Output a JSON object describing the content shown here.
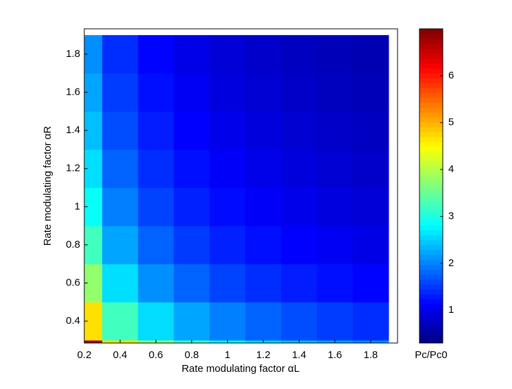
{
  "chart_data": {
    "type": "heatmap",
    "x_label": "Rate modulating factor αL",
    "y_label": "Rate modulating factor αR",
    "colorbar_label": "Pc/Pc0",
    "x": [
      0.2,
      0.4,
      0.6,
      0.8,
      1.0,
      1.2,
      1.4,
      1.6,
      1.8
    ],
    "y": [
      0.2,
      0.4,
      0.6,
      0.8,
      1.0,
      1.2,
      1.4,
      1.6,
      1.8
    ],
    "z": [
      [
        6.83,
        4.7,
        3.77,
        3.23,
        2.86,
        2.59,
        2.39,
        2.22,
        2.08
      ],
      [
        4.69,
        3.23,
        2.59,
        2.22,
        1.97,
        1.78,
        1.64,
        1.53,
        1.43
      ],
      [
        3.77,
        2.6,
        2.08,
        1.78,
        1.58,
        1.43,
        1.32,
        1.23,
        1.15
      ],
      [
        3.23,
        2.22,
        1.78,
        1.52,
        1.35,
        1.23,
        1.13,
        1.05,
        0.98
      ],
      [
        2.86,
        1.97,
        1.58,
        1.35,
        1.2,
        1.09,
        1.0,
        0.93,
        0.87
      ],
      [
        2.6,
        1.79,
        1.43,
        1.23,
        1.09,
        0.99,
        0.91,
        0.84,
        0.79
      ],
      [
        2.39,
        1.64,
        1.32,
        1.13,
        1.0,
        0.91,
        0.83,
        0.78,
        0.73
      ],
      [
        2.22,
        1.53,
        1.23,
        1.05,
        0.93,
        0.84,
        0.78,
        0.72,
        0.68
      ],
      [
        2.08,
        1.43,
        1.15,
        0.98,
        0.87,
        0.79,
        0.73,
        0.68,
        0.64
      ]
    ],
    "xlim": [
      0.2,
      1.95
    ],
    "ylim": [
      0.285,
      1.933
    ],
    "xticks": [
      0.2,
      0.4,
      0.6,
      0.8,
      1,
      1.2,
      1.4,
      1.6,
      1.8
    ],
    "yticks": [
      0.4,
      0.6,
      0.8,
      1,
      1.2,
      1.4,
      1.6,
      1.8
    ],
    "clim": [
      0.3,
      7.0
    ],
    "cticks": [
      1,
      2,
      3,
      4,
      5,
      6
    ],
    "colormap": "jet"
  }
}
